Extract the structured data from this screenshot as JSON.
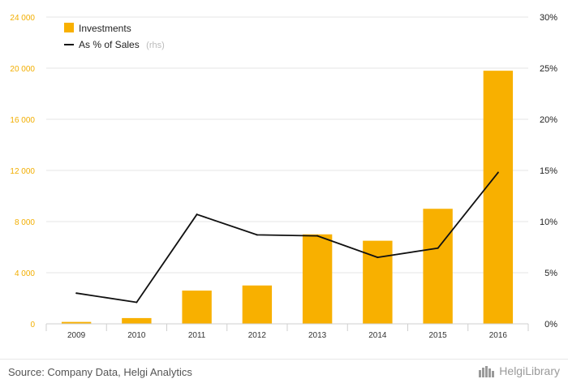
{
  "chart_data": {
    "type": "bar",
    "categories": [
      "2009",
      "2010",
      "2011",
      "2012",
      "2013",
      "2014",
      "2015",
      "2016"
    ],
    "series": [
      {
        "name": "Investments",
        "type": "bar",
        "axis": "left",
        "color": "#f8b000",
        "values": [
          150,
          450,
          2600,
          3000,
          7000,
          6500,
          9000,
          19800
        ]
      },
      {
        "name": "As % of Sales",
        "name_suffix": "(rhs)",
        "type": "line",
        "axis": "right",
        "color": "#111111",
        "values": [
          3.0,
          2.1,
          10.7,
          8.7,
          8.6,
          6.5,
          7.4,
          14.8
        ]
      }
    ],
    "y_left": {
      "ylim": [
        0,
        24000
      ],
      "ticks": [
        "0",
        "4 000",
        "8 000",
        "12 000",
        "16 000",
        "20 000",
        "24 000"
      ]
    },
    "y_right": {
      "ylim": [
        0,
        30
      ],
      "ticks": [
        "0%",
        "5%",
        "10%",
        "15%",
        "20%",
        "25%",
        "30%"
      ]
    },
    "grid": true,
    "legend_position": "top-left"
  },
  "footer": {
    "source": "Source: Company Data, Helgi Analytics",
    "brand": "HelgiLibrary"
  }
}
